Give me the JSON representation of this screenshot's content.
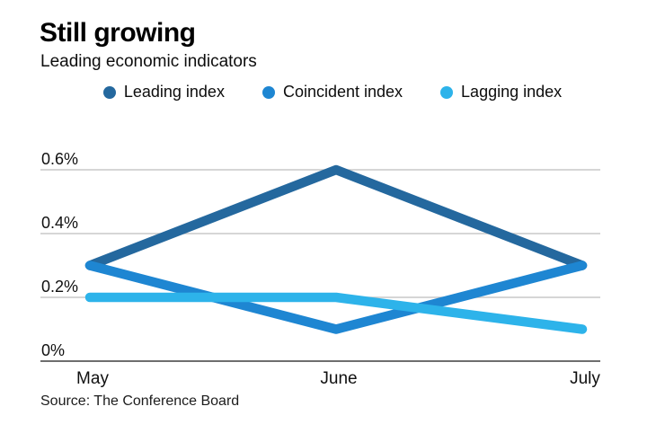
{
  "header": {
    "title": "Still growing",
    "subtitle": "Leading economic indicators"
  },
  "source": "Source: The Conference Board",
  "chart_data": {
    "type": "line",
    "categories": [
      "May",
      "June",
      "July"
    ],
    "series": [
      {
        "name": "Leading index",
        "color": "#24689e",
        "values": [
          0.3,
          0.6,
          0.3
        ]
      },
      {
        "name": "Coincident index",
        "color": "#1e86d2",
        "values": [
          0.3,
          0.1,
          0.3
        ]
      },
      {
        "name": "Lagging index",
        "color": "#2db3ea",
        "values": [
          0.2,
          0.2,
          0.1
        ]
      }
    ],
    "yticks": [
      {
        "value": 0,
        "label": "0%"
      },
      {
        "value": 0.2,
        "label": "0.2%"
      },
      {
        "value": 0.4,
        "label": "0.4%"
      },
      {
        "value": 0.6,
        "label": "0.6%"
      }
    ],
    "ylim": [
      0,
      0.7
    ],
    "xlabel": "",
    "ylabel": "",
    "grid": "horizontal",
    "legend_position": "top"
  }
}
